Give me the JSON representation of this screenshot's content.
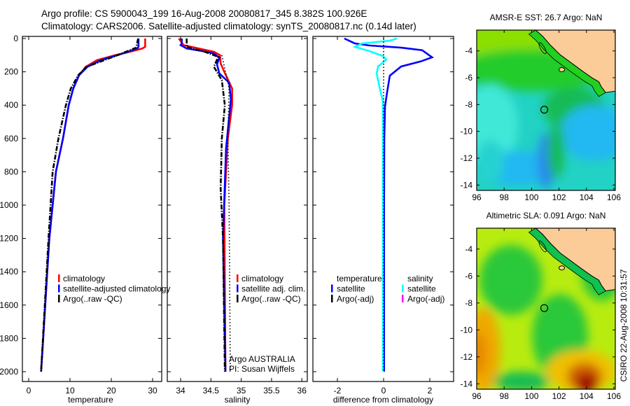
{
  "header": {
    "line1": "Argo profile: CS 5900043_199 16-Aug-2008 20080817_345 8.382S 100.926E",
    "line2": "Climatology: CARS2006. Satellite-adjusted climatology: synTS_20080817.nc (0.14d later)"
  },
  "credit": "CSIRO 22-Aug-2008 10:31:57",
  "colors": {
    "climatology": "#ff0000",
    "satellite": "#0000ff",
    "argo": "#000000",
    "salinity_satellite": "#00ffff",
    "salinity_argo": "#ff00ff"
  },
  "chart_data": [
    {
      "type": "line",
      "xlabel": "temperature",
      "ylabel": "",
      "xlim": [
        -1.5,
        32
      ],
      "ylim": [
        2050,
        -20
      ],
      "xticks": [
        "0",
        "10",
        "20",
        "30"
      ],
      "xtick_values": [
        0,
        10,
        20,
        30
      ],
      "yticks": [
        "0",
        "200",
        "400",
        "600",
        "800",
        "1000",
        "1200",
        "1400",
        "1600",
        "1800",
        "2000"
      ],
      "ytick_values": [
        0,
        200,
        400,
        600,
        800,
        1000,
        1200,
        1400,
        1600,
        1800,
        2000
      ],
      "legend": [
        "climatology",
        "satellite-adjusted climatology",
        "Argo(..raw -QC)"
      ],
      "series": [
        {
          "name": "climatology",
          "color": "#ff0000",
          "style": "solid",
          "depth": [
            0,
            50,
            60,
            80,
            100,
            130,
            170,
            220,
            300,
            400,
            600,
            800,
            1000,
            1200,
            1400,
            1600,
            1800,
            2000
          ],
          "values": [
            28.2,
            28.2,
            27.5,
            24.5,
            21,
            16.5,
            13.8,
            12.2,
            10.8,
            9.7,
            8.3,
            6.6,
            5.8,
            5.0,
            4.5,
            4.0,
            3.5,
            3.0
          ]
        },
        {
          "name": "satellite-adjusted climatology",
          "color": "#0000ff",
          "style": "solid",
          "depth": [
            0,
            50,
            60,
            80,
            100,
            130,
            170,
            220,
            300,
            400,
            600,
            800,
            1000,
            1200,
            1400,
            1600,
            1800,
            2000
          ],
          "values": [
            26.6,
            26.6,
            26.3,
            24,
            21.5,
            17.5,
            14.2,
            12.2,
            10.8,
            9.7,
            8.3,
            6.6,
            5.8,
            5.0,
            4.5,
            4.0,
            3.5,
            3.0
          ]
        },
        {
          "name": "Argo(..raw -QC)",
          "color": "#000000",
          "style": "dashdot",
          "depth": [
            0,
            55,
            100,
            170,
            220,
            300,
            400,
            600,
            800,
            1000,
            1200,
            1600,
            2000
          ],
          "values": [
            26.5,
            26,
            21.5,
            14,
            12,
            10.2,
            9.0,
            7.2,
            5.8,
            5.3,
            4.8,
            3.9,
            3.0
          ]
        }
      ]
    },
    {
      "type": "line",
      "xlabel": "salinity",
      "xlim": [
        33.78,
        36.1
      ],
      "ylim": [
        2050,
        -20
      ],
      "xticks": [
        "34",
        "34.5",
        "35",
        "35.5",
        "36"
      ],
      "xtick_values": [
        34,
        34.5,
        35,
        35.5,
        36
      ],
      "legend": [
        "climatology",
        "satellite adj. clim.",
        "Argo(..raw -QC)"
      ],
      "annotation": [
        "Argo AUSTRALIA",
        "PI: Susan Wijffels"
      ],
      "series": [
        {
          "name": "climatology",
          "color": "#ff0000",
          "style": "solid",
          "depth": [
            0,
            40,
            60,
            80,
            100,
            150,
            200,
            300,
            400,
            600,
            1000,
            2000
          ],
          "values": [
            33.97,
            34.05,
            34.3,
            34.55,
            34.65,
            34.66,
            34.72,
            34.85,
            34.85,
            34.78,
            34.72,
            34.74
          ]
        },
        {
          "name": "satellite adj. clim.",
          "color": "#0000ff",
          "style": "solid",
          "depth": [
            0,
            30,
            40,
            60,
            75,
            90,
            115,
            155,
            210,
            265,
            365,
            660,
            1200,
            2000
          ],
          "values": [
            34.02,
            34.02,
            34.0,
            34.1,
            34.35,
            34.55,
            34.64,
            34.6,
            34.64,
            34.8,
            34.83,
            34.75,
            34.7,
            34.74
          ]
        },
        {
          "name": "Argo(..raw -QC)",
          "color": "#000000",
          "style": "dashdot",
          "depth": [
            0,
            50,
            80,
            110,
            170,
            250,
            400,
            600,
            900,
            1200,
            2000
          ],
          "values": [
            34.1,
            34.1,
            34.4,
            34.62,
            34.55,
            34.68,
            34.73,
            34.68,
            34.66,
            34.7,
            34.73
          ]
        },
        {
          "name": "Argo raw",
          "color": "#000000",
          "style": "dotted",
          "depth": [
            100,
            300,
            600,
            1000,
            2000
          ],
          "values": [
            34.68,
            34.8,
            34.78,
            34.8,
            34.82
          ]
        }
      ]
    },
    {
      "type": "line",
      "xlabel": "difference from climatology",
      "xlim": [
        -2.8,
        3.1
      ],
      "ylim": [
        2050,
        -20
      ],
      "xticks": [
        "-2",
        "0",
        "2"
      ],
      "xtick_values": [
        -2,
        0,
        2
      ],
      "legend_left": {
        "heading": "temperature",
        "items": [
          "satellite",
          "Argo(-adj)"
        ]
      },
      "legend_right": {
        "heading": "salinity",
        "items": [
          "satellite",
          "Argo(-adj)"
        ]
      },
      "series": [
        {
          "name": "temperature satellite",
          "color": "#0000ff",
          "style": "solid",
          "depth": [
            0,
            30,
            42,
            55,
            70,
            113,
            138,
            168,
            223,
            323,
            408,
            600,
            1000,
            2000
          ],
          "values": [
            -1.7,
            -1.24,
            -0.6,
            0.76,
            1.67,
            2.1,
            1.6,
            0.76,
            0.27,
            0.15,
            0.06,
            0.03,
            0.02,
            0.02
          ]
        },
        {
          "name": "salinity satellite",
          "color": "#00ffff",
          "style": "solid",
          "depth": [
            0,
            13,
            30,
            50,
            75,
            105,
            126,
            168,
            210,
            307,
            378,
            600,
            1000,
            2000
          ],
          "values": [
            0.58,
            0.27,
            -0.94,
            -1.24,
            -0.63,
            -0.03,
            0.12,
            -0.24,
            -0.3,
            -0.15,
            -0.03,
            -0.03,
            -0.03,
            -0.03
          ]
        },
        {
          "name": "zero line",
          "color": "#000000",
          "style": "dotted",
          "depth": [
            0,
            2000
          ],
          "values": [
            0,
            0
          ]
        }
      ]
    },
    {
      "type": "heatmap",
      "title": "AMSR-E SST: 26.7 Argo: NaN",
      "xticks": [
        "96",
        "98",
        "100",
        "102",
        "104",
        "106"
      ],
      "xtick_values": [
        96,
        98,
        100,
        102,
        104,
        106
      ],
      "yticks": [
        "-4",
        "-6",
        "-8",
        "-10",
        "-12",
        "-14"
      ],
      "ytick_values": [
        -4,
        -6,
        -8,
        -10,
        -12,
        -14
      ],
      "xlim": [
        95.95,
        106.1
      ],
      "ylim": [
        -14.4,
        -2.45
      ],
      "marker": {
        "lon": 100.926,
        "lat": -8.382
      }
    },
    {
      "type": "heatmap",
      "title": "Altimetric SLA: 0.091 Argo: NaN",
      "xticks": [
        "96",
        "98",
        "100",
        "102",
        "104",
        "106"
      ],
      "xtick_values": [
        96,
        98,
        100,
        102,
        104,
        106
      ],
      "yticks": [
        "-4",
        "-6",
        "-8",
        "-10",
        "-12",
        "-14"
      ],
      "ytick_values": [
        -4,
        -6,
        -8,
        -10,
        -12,
        -14
      ],
      "xlim": [
        95.95,
        106.1
      ],
      "ylim": [
        -14.4,
        -2.45
      ],
      "marker": {
        "lon": 100.926,
        "lat": -8.382
      }
    }
  ]
}
